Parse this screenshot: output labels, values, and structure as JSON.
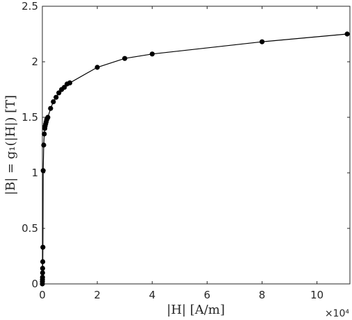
{
  "chart_data": {
    "type": "line",
    "xlabel": "|H|  [A/m]",
    "ylabel": "|B| = g₁(|H|)  [T]",
    "x_exponent_label": "×10⁴",
    "x_exponent_scale": 10000,
    "xlim": [
      0,
      112000
    ],
    "ylim": [
      0,
      2.5
    ],
    "x_ticks": [
      0,
      20000,
      40000,
      60000,
      80000,
      100000
    ],
    "x_tick_labels": [
      "0",
      "2",
      "4",
      "6",
      "8",
      "10"
    ],
    "y_ticks": [
      0,
      0.5,
      1,
      1.5,
      2,
      2.5
    ],
    "y_tick_labels": [
      "0",
      "0.5",
      "1",
      "1.5",
      "2",
      "2.5"
    ],
    "grid": false,
    "marker": "circle",
    "color": "#000000",
    "series": [
      {
        "x": [
          0,
          20,
          40,
          60,
          80,
          100,
          150,
          200,
          300,
          500,
          700,
          900,
          1000,
          1200,
          1400,
          1600,
          1800,
          2000,
          3000,
          4000,
          5000,
          6000,
          7000,
          8000,
          9000,
          10000,
          20000,
          30000,
          40000,
          80000,
          111000
        ],
        "y": [
          0,
          0.02,
          0.04,
          0.06,
          0.1,
          0.14,
          0.2,
          0.33,
          1.02,
          1.25,
          1.35,
          1.4,
          1.42,
          1.44,
          1.46,
          1.48,
          1.49,
          1.5,
          1.58,
          1.64,
          1.68,
          1.72,
          1.75,
          1.77,
          1.8,
          1.81,
          1.95,
          2.03,
          2.07,
          2.18,
          2.25
        ]
      }
    ]
  }
}
